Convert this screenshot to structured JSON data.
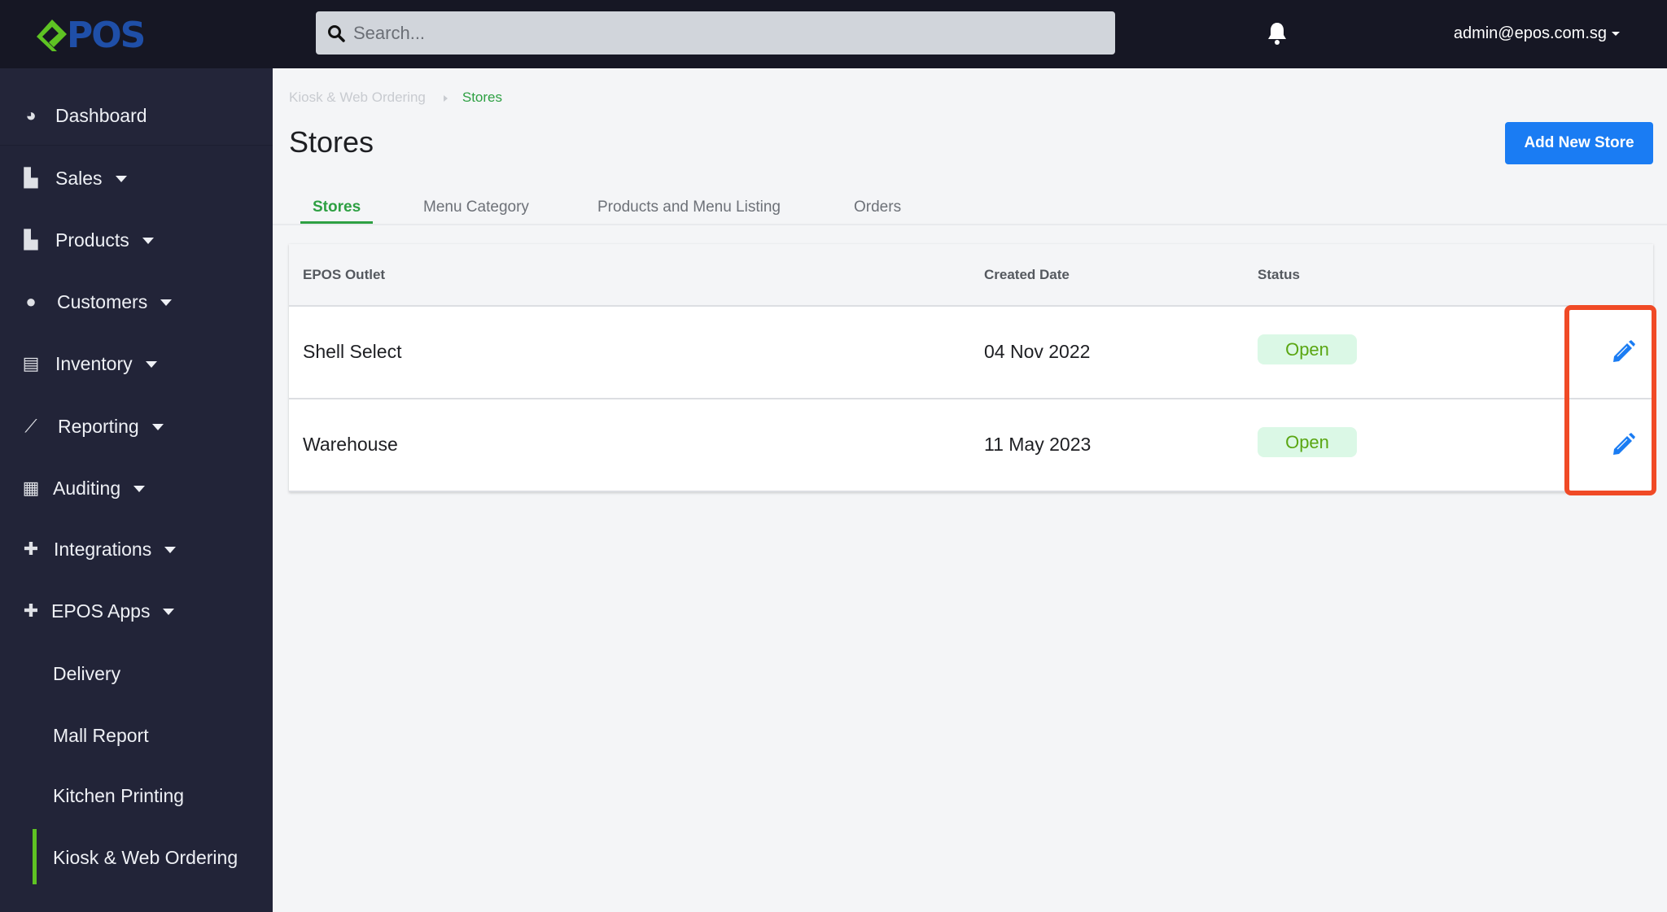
{
  "header": {
    "logo_text": "POS",
    "search_placeholder": "Search...",
    "user": "admin@epos.com.sg"
  },
  "sidebar": {
    "items": [
      {
        "label": "Dashboard",
        "icon": "tachometer-icon"
      },
      {
        "label": "Sales",
        "icon": "shopping-bag-icon"
      },
      {
        "label": "Products",
        "icon": "shopping-bag-icon"
      },
      {
        "label": "Customers",
        "icon": "users-icon"
      },
      {
        "label": "Inventory",
        "icon": "archive-icon"
      },
      {
        "label": "Reporting",
        "icon": "line-chart-icon"
      },
      {
        "label": "Auditing",
        "icon": "file-icon"
      },
      {
        "label": "Integrations",
        "icon": "puzzle-icon"
      },
      {
        "label": "EPOS Apps",
        "icon": "plus-icon"
      }
    ],
    "sub_items": [
      "Delivery",
      "Mall Report",
      "Kitchen Printing",
      "Kiosk & Web Ordering"
    ],
    "active": "Kiosk & Web Ordering"
  },
  "breadcrumb": {
    "parent": "Kiosk & Web Ordering",
    "current": "Stores"
  },
  "page": {
    "title": "Stores",
    "add_button": "Add New Store"
  },
  "tabs": [
    "Stores",
    "Menu Category",
    "Products and Menu Listing",
    "Orders"
  ],
  "table": {
    "headers": [
      "EPOS Outlet",
      "Created Date",
      "Status"
    ],
    "rows": [
      {
        "outlet": "Shell Select",
        "date": "04 Nov 2022",
        "status": "Open"
      },
      {
        "outlet": "Warehouse",
        "date": "11 May 2023",
        "status": "Open"
      }
    ]
  },
  "colors": {
    "accent_green": "#2ea043",
    "primary_blue": "#1a7cf3",
    "highlight": "#f04a26",
    "sidebar": "#222438"
  }
}
